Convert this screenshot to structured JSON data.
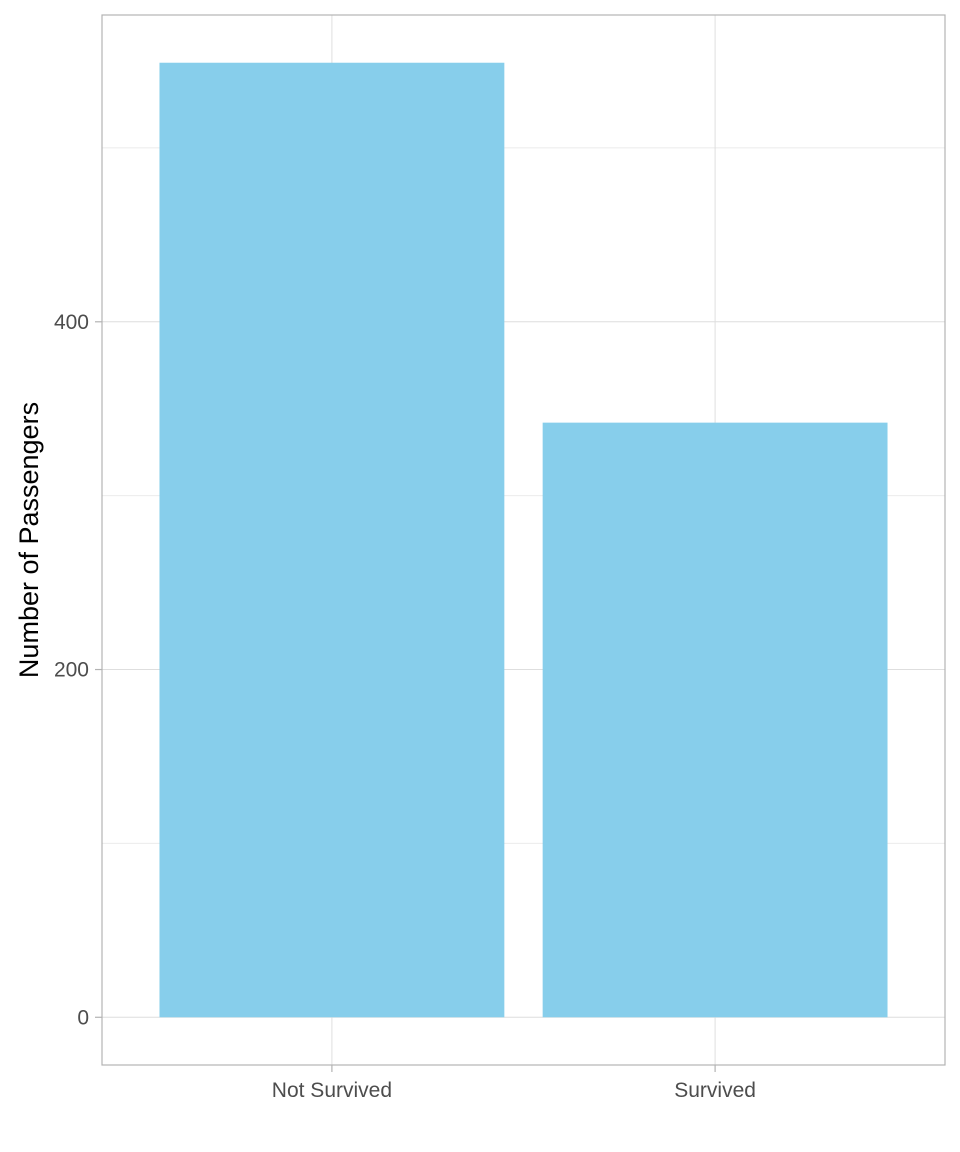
{
  "chart_data": {
    "type": "bar",
    "title": "",
    "xlabel": "",
    "ylabel": "Number of Passengers",
    "categories": [
      "Not Survived",
      "Survived"
    ],
    "values": [
      549,
      342
    ],
    "ylim": [
      -27.45,
      576.45
    ],
    "y_ticks": [
      0,
      200,
      400
    ],
    "y_tick_labels": [
      "0",
      "200",
      "400"
    ],
    "y_minor_ticks": [
      100,
      300,
      500
    ],
    "bar_color": "#87CEEB",
    "grid": true,
    "legend": "none"
  }
}
